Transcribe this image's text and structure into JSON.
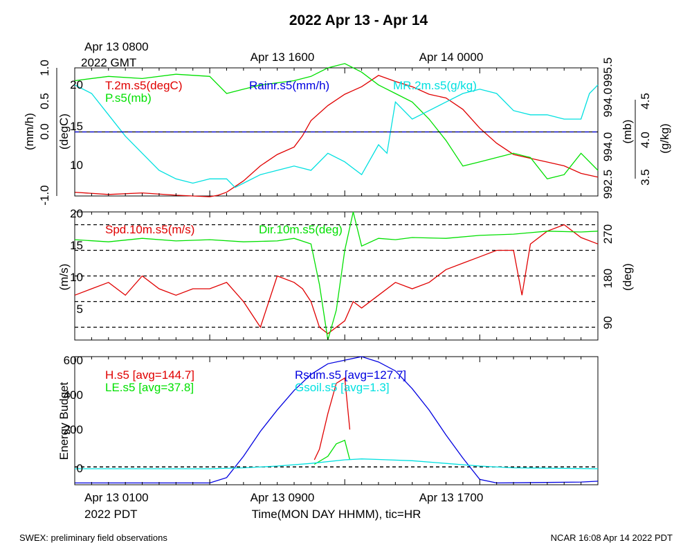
{
  "title": "2022 Apr 13 - Apr 14",
  "top_time_axis": {
    "first_tick": "Apr 13 0800",
    "first_tick_sub": "2022 GMT",
    "ticks": [
      "Apr 13 1600",
      "Apr 14 0000"
    ]
  },
  "bottom_time_axis": {
    "first_tick": "Apr 13 0100",
    "first_tick_sub": "2022 PDT",
    "ticks": [
      "Apr 13 0900",
      "Apr 13 1700"
    ],
    "label": "Time(MON DAY HHMM), tic=HR"
  },
  "footer": {
    "left": "SWEX: preliminary field observations",
    "right": "NCAR 16:08 Apr 14 2022 PDT"
  },
  "colors": {
    "red": "#e00000",
    "green": "#00e000",
    "cyan": "#00e0e0",
    "blue": "#0000e0",
    "black": "#000000"
  },
  "chart_data": [
    {
      "type": "line",
      "panel": "top",
      "x_hours_start": 0,
      "x_hours_end": 31,
      "axes": {
        "rain": {
          "label": "(mm/h)",
          "ticks": [
            "1.0",
            "0.5",
            "0.0",
            "-1.0"
          ],
          "range": [
            -1.0,
            1.0
          ]
        },
        "temp": {
          "label": "(degC)",
          "ticks": [
            "20",
            "15",
            "10"
          ],
          "range": [
            6.5,
            23.5
          ]
        },
        "pres": {
          "label": "(mb)",
          "ticks": [
            "995.5",
            "994.0",
            "994.0",
            "992.5"
          ],
          "range": [
            992.5,
            995.5
          ]
        },
        "mr": {
          "label": "(g/kg)",
          "ticks": [
            "4.5",
            "4.0",
            "3.5"
          ],
          "range": [
            3.3,
            4.8
          ]
        }
      },
      "series": [
        {
          "name": "T.2m.s5(degC)",
          "color": "#e00000",
          "axis": "temp",
          "x": [
            0,
            2,
            4,
            6,
            8,
            8.5,
            9,
            10,
            11,
            12,
            13,
            13.5,
            14,
            15,
            16,
            17,
            18,
            19,
            20,
            21,
            22,
            23,
            24,
            25,
            26,
            27,
            28,
            29,
            30,
            31
          ],
          "y": [
            7.0,
            6.7,
            6.9,
            6.6,
            6.4,
            6.6,
            7.0,
            8.5,
            10.5,
            12.0,
            13.0,
            14.5,
            16.5,
            18.5,
            20.0,
            21.0,
            22.5,
            21.7,
            21.0,
            20.0,
            19.5,
            18.0,
            15.5,
            13.5,
            12.0,
            11.5,
            11.0,
            10.5,
            9.5,
            9.0
          ]
        },
        {
          "name": "P.s5(mb)",
          "color": "#00e000",
          "axis": "pres",
          "x": [
            0,
            2,
            4,
            6,
            8,
            9,
            10,
            11,
            12,
            13,
            14,
            15,
            16,
            17,
            18,
            19,
            20,
            21,
            22,
            23,
            24,
            25,
            26,
            27,
            28,
            29,
            30,
            31
          ],
          "y": [
            995.2,
            995.3,
            995.25,
            995.35,
            995.3,
            994.9,
            995.0,
            995.1,
            995.15,
            995.2,
            995.3,
            995.5,
            995.6,
            995.4,
            995.1,
            994.9,
            994.7,
            994.3,
            993.8,
            993.2,
            993.3,
            993.4,
            993.5,
            993.4,
            992.9,
            993.0,
            993.5,
            993.1
          ]
        },
        {
          "name": "MR.2m.s5(g/kg)",
          "color": "#00e0e0",
          "axis": "mr",
          "x": [
            0,
            1,
            2,
            3,
            4,
            5,
            6,
            7,
            8,
            9,
            9.5,
            10,
            11,
            12,
            13,
            14,
            15,
            16,
            17,
            18,
            18.5,
            19,
            20,
            21,
            22,
            23,
            24,
            25,
            26,
            27,
            28,
            29,
            30,
            30.5,
            31
          ],
          "y": [
            4.6,
            4.5,
            4.25,
            4.0,
            3.8,
            3.6,
            3.5,
            3.45,
            3.5,
            3.5,
            3.4,
            3.45,
            3.55,
            3.6,
            3.65,
            3.6,
            3.8,
            3.7,
            3.55,
            3.9,
            3.8,
            4.4,
            4.2,
            4.3,
            4.4,
            4.5,
            4.55,
            4.5,
            4.3,
            4.25,
            4.25,
            4.2,
            4.2,
            4.5,
            4.6
          ]
        },
        {
          "name": "Rainr.s5(mm/h)",
          "color": "#0000e0",
          "axis": "rain",
          "x": [
            0,
            31
          ],
          "y": [
            0.0,
            0.0
          ]
        }
      ],
      "legend": [
        {
          "text": "T.2m.s5(degC)",
          "color": "#e00000"
        },
        {
          "text": "P.s5(mb)",
          "color": "#00e000"
        },
        {
          "text": "Rainr.s5(mm/h)",
          "color": "#0000e0"
        },
        {
          "text": "MR.2m.s5(g/kg)",
          "color": "#00e0e0"
        }
      ]
    },
    {
      "type": "line",
      "panel": "middle",
      "x_hours_start": 0,
      "x_hours_end": 31,
      "axes": {
        "spd": {
          "label": "(m/s)",
          "ticks": [
            "20",
            "15",
            "10",
            "5"
          ],
          "range": [
            0,
            20
          ]
        },
        "dir": {
          "label": "(deg)",
          "ticks": [
            "270",
            "180",
            "90"
          ],
          "range": [
            30,
            330
          ]
        }
      },
      "reference_lines_dir": [
        60,
        120,
        180,
        240,
        300
      ],
      "series": [
        {
          "name": "Spd.10m.s5(m/s)",
          "color": "#e00000",
          "axis": "spd",
          "x": [
            0,
            1,
            2,
            3,
            4,
            5,
            6,
            7,
            8,
            9,
            10,
            10.5,
            11,
            12,
            13,
            13.5,
            14,
            14.5,
            15,
            15.5,
            16,
            16.5,
            17,
            18,
            19,
            20,
            21,
            22,
            23,
            24,
            25,
            26,
            26.5,
            27,
            28,
            29,
            30,
            31
          ],
          "y": [
            7,
            8,
            9,
            7,
            10,
            8,
            7,
            8,
            8,
            9,
            6,
            4,
            2,
            10,
            9,
            8,
            6,
            2,
            1,
            2,
            3,
            6,
            5,
            7,
            9,
            8,
            9,
            11,
            12,
            13,
            14,
            14,
            7,
            15,
            17,
            18,
            16,
            15
          ]
        },
        {
          "name": "Dir.10m.s5(deg)",
          "color": "#00e000",
          "axis": "dir",
          "x": [
            0,
            2,
            4,
            6,
            8,
            10,
            12,
            13,
            14,
            14.5,
            15,
            15.5,
            16,
            16.5,
            17,
            18,
            19,
            20,
            22,
            24,
            26,
            28,
            30,
            31
          ],
          "y": [
            265,
            260,
            268,
            262,
            265,
            260,
            262,
            268,
            255,
            160,
            30,
            100,
            240,
            330,
            250,
            268,
            265,
            270,
            268,
            275,
            278,
            285,
            283,
            285
          ]
        }
      ],
      "legend": [
        {
          "text": "Spd.10m.s5(m/s)",
          "color": "#e00000"
        },
        {
          "text": "Dir.10m.s5(deg)",
          "color": "#00e000"
        }
      ]
    },
    {
      "type": "line",
      "panel": "bottom",
      "x_hours_start": 0,
      "x_hours_end": 31,
      "axis": {
        "label": "Energy Budget",
        "ticks": [
          "600",
          "400",
          "200",
          "0"
        ],
        "range": [
          -100,
          620
        ]
      },
      "series": [
        {
          "name": "H.s5",
          "color": "#e00000",
          "x": [
            14.2,
            14.5,
            15,
            15.5,
            16,
            16.3
          ],
          "y": [
            40,
            100,
            300,
            470,
            500,
            210
          ]
        },
        {
          "name": "LE.s5",
          "color": "#00e000",
          "x": [
            14.2,
            15,
            15.5,
            16,
            16.3
          ],
          "y": [
            15,
            60,
            130,
            150,
            40
          ]
        },
        {
          "name": "Rsum.s5",
          "color": "#0000e0",
          "x": [
            0,
            8,
            9,
            10,
            11,
            12,
            13,
            14,
            15,
            16,
            17,
            18,
            19,
            20,
            21,
            22,
            23,
            24,
            25,
            30,
            31
          ],
          "y": [
            -90,
            -90,
            -60,
            60,
            200,
            320,
            430,
            520,
            580,
            600,
            620,
            590,
            540,
            440,
            320,
            180,
            50,
            -70,
            -90,
            -85,
            -80
          ]
        },
        {
          "name": "Gsoil.s5",
          "color": "#00e0e0",
          "x": [
            0,
            8,
            10,
            12,
            14,
            16,
            17,
            18,
            20,
            22,
            24,
            26,
            31
          ],
          "y": [
            -10,
            -10,
            -5,
            5,
            20,
            40,
            45,
            42,
            35,
            20,
            5,
            -5,
            -10
          ]
        }
      ],
      "legend": [
        {
          "text": "H.s5 [avg=144.7]",
          "color": "#e00000"
        },
        {
          "text": "LE.s5 [avg=37.8]",
          "color": "#00e000"
        },
        {
          "text": "Rsum.s5 [avg=127.7]",
          "color": "#0000e0"
        },
        {
          "text": "Gsoil.s5 [avg=1.3]",
          "color": "#00e0e0"
        }
      ]
    }
  ]
}
